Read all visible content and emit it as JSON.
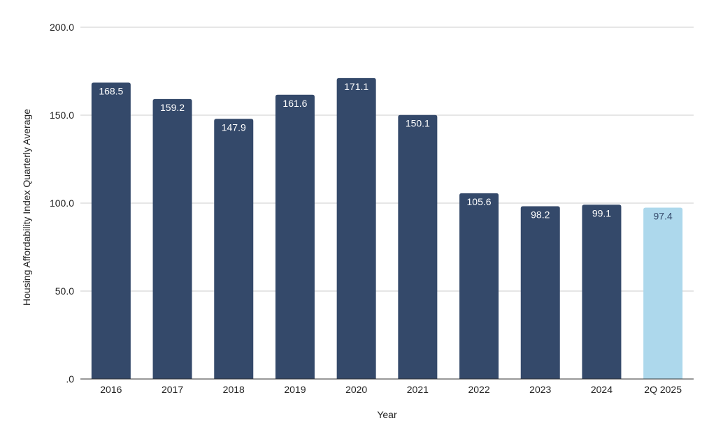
{
  "chart_data": {
    "type": "bar",
    "title": "",
    "xlabel": "Year",
    "ylabel": "Housing Affordability Index Quarterly Average",
    "categories": [
      "2016",
      "2017",
      "2018",
      "2019",
      "2020",
      "2021",
      "2022",
      "2023",
      "2024",
      "2Q 2025"
    ],
    "values": [
      168.5,
      159.2,
      147.9,
      161.6,
      171.1,
      150.1,
      105.6,
      98.2,
      99.1,
      97.4
    ],
    "data_labels": [
      "168.5",
      "159.2",
      "147.9",
      "161.6",
      "171.1",
      "150.1",
      "105.6",
      "98.2",
      "99.1",
      "97.4"
    ],
    "y_ticks": [
      0,
      50,
      100,
      150,
      200
    ],
    "y_tick_labels": [
      ".0",
      "50.0",
      "100.0",
      "150.0",
      "200.0"
    ],
    "ylim": [
      0,
      200
    ],
    "grid": true,
    "legend": "none",
    "colors": {
      "bar": "#34496a",
      "bar_highlight": "#add8ec",
      "label_on_dark": "#ffffff",
      "label_on_light": "#34496a",
      "gridline": "#cccccc",
      "baseline": "#333333"
    },
    "highlight_categories": [
      "2Q 2025"
    ]
  }
}
